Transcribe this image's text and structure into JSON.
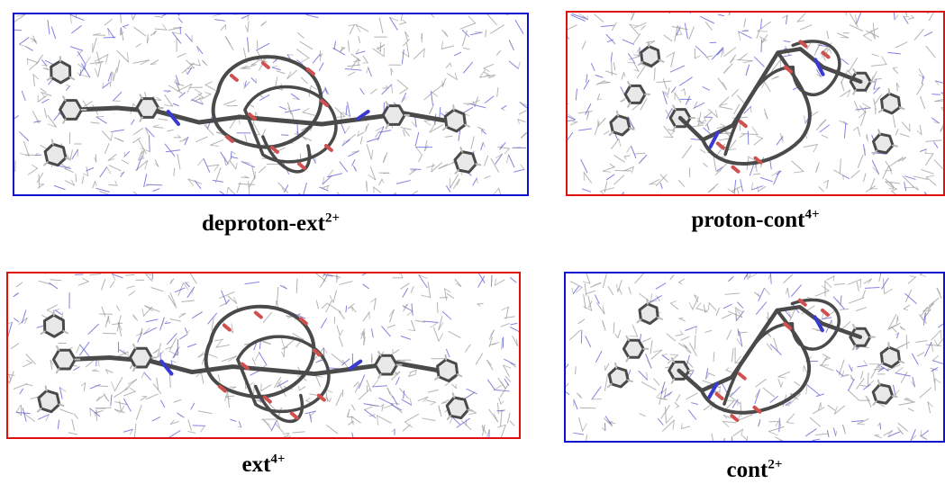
{
  "colors": {
    "blue_frame": "#1010d0",
    "red_frame": "#e01010",
    "solvent_gray": "#9a9a9a",
    "solvent_blue": "#5a5ad8",
    "molecule_dark": "#4a4a4a",
    "molecule_oxygen": "#d05050",
    "molecule_nitrogen": "#3a3ad0"
  },
  "panels": [
    {
      "id": "p1",
      "frame": "blue",
      "kind": "extended",
      "caption": {
        "base": "deproton-ext",
        "sup": "2+"
      }
    },
    {
      "id": "p2",
      "frame": "red",
      "kind": "contracted",
      "caption": {
        "base": "proton-cont",
        "sup": "4+"
      }
    },
    {
      "id": "p3",
      "frame": "red",
      "kind": "extended",
      "caption": {
        "base": "ext",
        "sup": "4+"
      }
    },
    {
      "id": "p4",
      "frame": "blue",
      "kind": "contracted",
      "caption": {
        "base": "cont",
        "sup": "2+"
      }
    }
  ]
}
